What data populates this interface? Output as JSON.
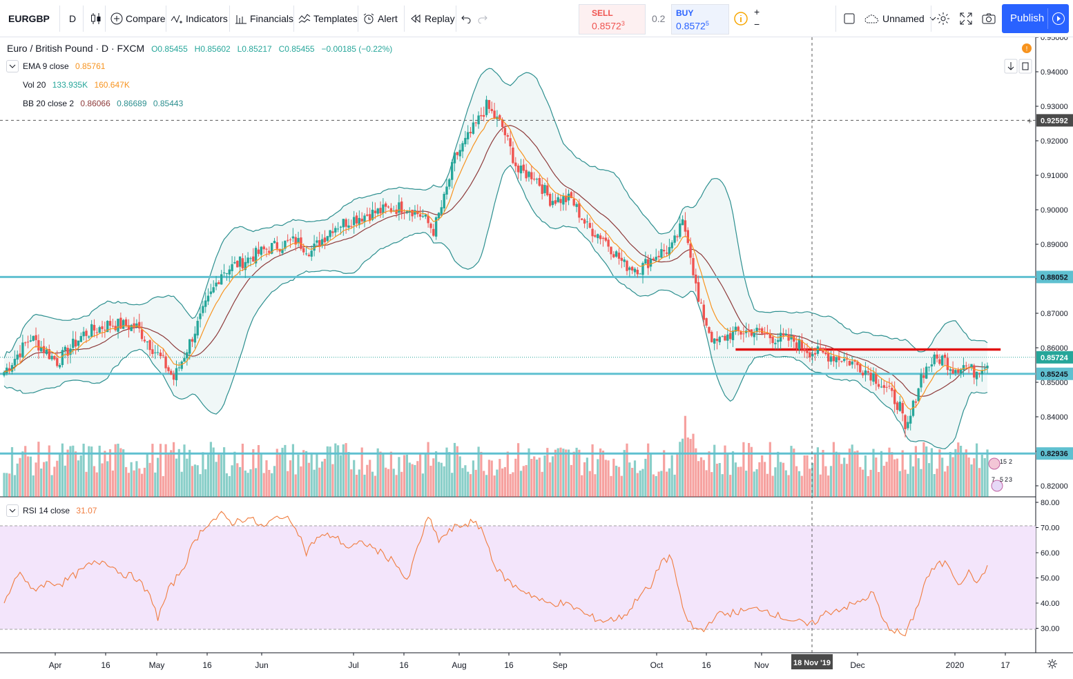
{
  "toolbar": {
    "symbol": "EURGBP",
    "interval": "D",
    "compare": "Compare",
    "indicators": "Indicators",
    "financials": "Financials",
    "templates": "Templates",
    "alert": "Alert",
    "replay": "Replay",
    "sell_label": "SELL",
    "sell_price": "0.8572",
    "sell_sup": "3",
    "spread": "0.2",
    "buy_label": "BUY",
    "buy_price": "0.8572",
    "buy_sup": "5",
    "layout_name": "Unnamed",
    "publish": "Publish"
  },
  "legend": {
    "title": "Euro / British Pound · D · FXCM",
    "o": "O0.85455",
    "h": "H0.85602",
    "l": "L0.85217",
    "c": "C0.85455",
    "chg": "−0.00185 (−0.22%)",
    "ema_label": "EMA 9 close",
    "ema_val": "0.85761",
    "vol_label": "Vol 20",
    "vol_val1": "133.935K",
    "vol_val2": "160.647K",
    "bb_label": "BB 20 close 2",
    "bb_val1": "0.86066",
    "bb_val2": "0.86689",
    "bb_val3": "0.85443",
    "rsi_label": "RSI 14 close",
    "rsi_val": "31.07"
  },
  "colors": {
    "up": "#26a69a",
    "down": "#ef5350",
    "ema": "#f7931e",
    "bb_basis": "#8d3a3a",
    "bb_band": "#2c8f8f",
    "hline": "#5fc0d0",
    "red_line": "#e01010",
    "rsi": "#f07c3e",
    "rsi_fill": "#f3e5fb"
  },
  "chart_data": {
    "type": "candlestick",
    "symbol": "EURGBP",
    "x_labels": [
      "Apr",
      "16",
      "May",
      "16",
      "Jun",
      "Jul",
      "16",
      "Aug",
      "16",
      "Sep",
      "Oct",
      "16",
      "Nov",
      "18 Nov '19",
      "Dec",
      "2020",
      "17"
    ],
    "y_ticks": [
      "0.95000",
      "0.94000",
      "0.93000",
      "0.92000",
      "0.91000",
      "0.90000",
      "0.89000",
      "0.88000",
      "0.87000",
      "0.86000",
      "0.85000",
      "0.84000",
      "0.83000",
      "0.82000"
    ],
    "ylim": [
      0.82,
      0.95
    ],
    "price_labels": {
      "crosshair": "0.92592",
      "line1": "0.88052",
      "current": "0.85724",
      "line2": "0.85245",
      "line3": "0.82936"
    },
    "horizontal_lines": [
      0.88052,
      0.85245,
      0.82936
    ],
    "crosshair_price": 0.92592,
    "crosshair_x_label": "18 Nov '19",
    "resistance_line": 0.8595,
    "close_anchors": [
      [
        0,
        0.853
      ],
      [
        10,
        0.863
      ],
      [
        20,
        0.856
      ],
      [
        30,
        0.864
      ],
      [
        40,
        0.867
      ],
      [
        50,
        0.866
      ],
      [
        56,
        0.86
      ],
      [
        60,
        0.856
      ],
      [
        64,
        0.851
      ],
      [
        68,
        0.858
      ],
      [
        76,
        0.872
      ],
      [
        82,
        0.882
      ],
      [
        90,
        0.885
      ],
      [
        100,
        0.889
      ],
      [
        110,
        0.891
      ],
      [
        116,
        0.888
      ],
      [
        124,
        0.895
      ],
      [
        134,
        0.898
      ],
      [
        144,
        0.9
      ],
      [
        152,
        0.901
      ],
      [
        158,
        0.898
      ],
      [
        162,
        0.894
      ],
      [
        166,
        0.903
      ],
      [
        170,
        0.915
      ],
      [
        176,
        0.922
      ],
      [
        182,
        0.93
      ],
      [
        188,
        0.924
      ],
      [
        194,
        0.911
      ],
      [
        200,
        0.91
      ],
      [
        206,
        0.903
      ],
      [
        214,
        0.903
      ],
      [
        220,
        0.895
      ],
      [
        226,
        0.892
      ],
      [
        234,
        0.884
      ],
      [
        240,
        0.883
      ],
      [
        246,
        0.887
      ],
      [
        252,
        0.889
      ],
      [
        256,
        0.896
      ],
      [
        258,
        0.892
      ],
      [
        262,
        0.873
      ],
      [
        268,
        0.861
      ],
      [
        274,
        0.864
      ],
      [
        282,
        0.865
      ],
      [
        290,
        0.863
      ],
      [
        298,
        0.862
      ],
      [
        304,
        0.859
      ],
      [
        310,
        0.858
      ],
      [
        316,
        0.857
      ],
      [
        322,
        0.855
      ],
      [
        328,
        0.852
      ],
      [
        334,
        0.847
      ],
      [
        338,
        0.843
      ],
      [
        340,
        0.835
      ],
      [
        342,
        0.84
      ],
      [
        346,
        0.852
      ],
      [
        350,
        0.856
      ],
      [
        354,
        0.857
      ],
      [
        358,
        0.854
      ],
      [
        362,
        0.855
      ],
      [
        366,
        0.853
      ],
      [
        370,
        0.8555
      ]
    ],
    "indicators": {
      "ema": "EMA 9 close",
      "bb": "BB 20 close 2",
      "volume": "Vol 20"
    },
    "rsi": {
      "label": "RSI 14 close",
      "y_ticks": [
        "80.00",
        "70.00",
        "60.00",
        "50.00",
        "40.00",
        "30.00"
      ],
      "ylim": [
        20,
        80
      ],
      "band": [
        30,
        70
      ],
      "anchors": [
        [
          0,
          40
        ],
        [
          6,
          53
        ],
        [
          10,
          45
        ],
        [
          16,
          48
        ],
        [
          22,
          48
        ],
        [
          28,
          52
        ],
        [
          32,
          55
        ],
        [
          38,
          57
        ],
        [
          44,
          52
        ],
        [
          50,
          50
        ],
        [
          56,
          41
        ],
        [
          58,
          34
        ],
        [
          62,
          45
        ],
        [
          68,
          55
        ],
        [
          72,
          65
        ],
        [
          76,
          71
        ],
        [
          82,
          75
        ],
        [
          86,
          72
        ],
        [
          92,
          74
        ],
        [
          98,
          70
        ],
        [
          104,
          75
        ],
        [
          110,
          71
        ],
        [
          114,
          60
        ],
        [
          118,
          66
        ],
        [
          124,
          67
        ],
        [
          130,
          62
        ],
        [
          136,
          64
        ],
        [
          142,
          60
        ],
        [
          148,
          56
        ],
        [
          152,
          48
        ],
        [
          156,
          62
        ],
        [
          160,
          74
        ],
        [
          164,
          65
        ],
        [
          170,
          70
        ],
        [
          176,
          72
        ],
        [
          180,
          70
        ],
        [
          186,
          53
        ],
        [
          192,
          47
        ],
        [
          198,
          44
        ],
        [
          204,
          40
        ],
        [
          210,
          40
        ],
        [
          216,
          38
        ],
        [
          220,
          35
        ],
        [
          226,
          33
        ],
        [
          232,
          34
        ],
        [
          236,
          37
        ],
        [
          240,
          44
        ],
        [
          244,
          46
        ],
        [
          248,
          57
        ],
        [
          252,
          58
        ],
        [
          256,
          37
        ],
        [
          260,
          30
        ],
        [
          264,
          29
        ],
        [
          268,
          35
        ],
        [
          274,
          36
        ],
        [
          280,
          37
        ],
        [
          286,
          38
        ],
        [
          292,
          35
        ],
        [
          298,
          33
        ],
        [
          304,
          31
        ],
        [
          310,
          36
        ],
        [
          316,
          38
        ],
        [
          322,
          40
        ],
        [
          328,
          44
        ],
        [
          332,
          32
        ],
        [
          336,
          29
        ],
        [
          340,
          27
        ],
        [
          344,
          37
        ],
        [
          348,
          50
        ],
        [
          352,
          55
        ],
        [
          356,
          56
        ],
        [
          360,
          48
        ],
        [
          364,
          52
        ],
        [
          368,
          48
        ],
        [
          372,
          57
        ]
      ]
    }
  }
}
